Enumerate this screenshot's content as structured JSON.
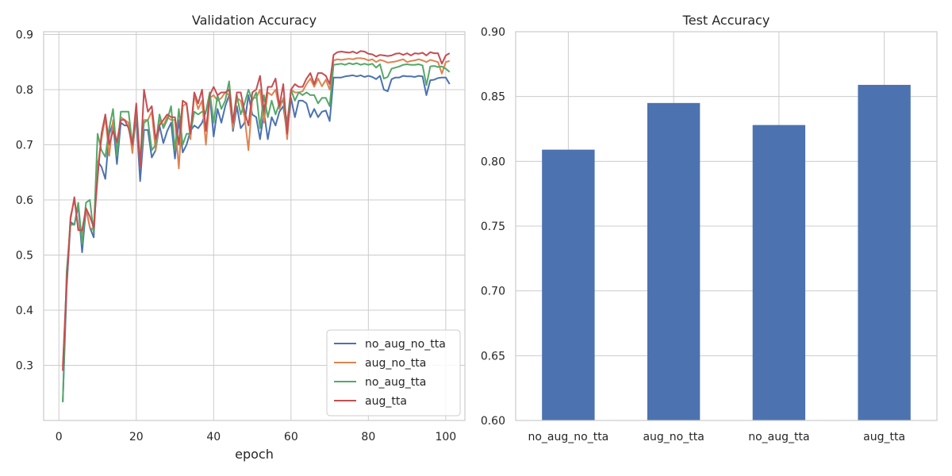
{
  "chart_data": [
    {
      "type": "line",
      "title": "Validation Accuracy",
      "xlabel": "epoch",
      "ylabel": "",
      "xlim": [
        -3.95,
        104.95
      ],
      "ylim": [
        0.2,
        0.905
      ],
      "xticks": [
        0,
        20,
        40,
        60,
        80,
        100
      ],
      "yticks": [
        0.3,
        0.4,
        0.5,
        0.6,
        0.7,
        0.8,
        0.9
      ],
      "ytick_labels": [
        "0.3",
        "0.4",
        "0.5",
        "0.6",
        "0.7",
        "0.8",
        "0.9"
      ],
      "grid": true,
      "legend": "lower-right",
      "series": [
        {
          "name": "no_aug_no_tta",
          "color": "#4c72b0",
          "values": [
            0.234,
            0.44,
            0.56,
            0.555,
            0.59,
            0.505,
            0.585,
            0.55,
            0.532,
            0.67,
            0.66,
            0.638,
            0.72,
            0.74,
            0.665,
            0.74,
            0.735,
            0.735,
            0.69,
            0.75,
            0.634,
            0.727,
            0.727,
            0.677,
            0.69,
            0.735,
            0.703,
            0.725,
            0.74,
            0.675,
            0.745,
            0.686,
            0.7,
            0.725,
            0.735,
            0.73,
            0.74,
            0.76,
            0.79,
            0.715,
            0.765,
            0.74,
            0.77,
            0.79,
            0.725,
            0.77,
            0.73,
            0.74,
            0.79,
            0.755,
            0.75,
            0.71,
            0.76,
            0.71,
            0.75,
            0.735,
            0.76,
            0.77,
            0.72,
            0.785,
            0.75,
            0.78,
            0.78,
            0.775,
            0.75,
            0.765,
            0.75,
            0.76,
            0.762,
            0.743,
            0.822,
            0.822,
            0.822,
            0.824,
            0.825,
            0.826,
            0.824,
            0.826,
            0.823,
            0.825,
            0.823,
            0.819,
            0.825,
            0.8,
            0.797,
            0.819,
            0.822,
            0.822,
            0.825,
            0.824,
            0.824,
            0.823,
            0.825,
            0.824,
            0.79,
            0.817,
            0.818,
            0.821,
            0.822,
            0.822,
            0.81
          ]
        },
        {
          "name": "aug_no_tta",
          "color": "#dd8452",
          "values": [
            0.298,
            0.45,
            0.57,
            0.6,
            0.55,
            0.54,
            0.585,
            0.55,
            0.545,
            0.66,
            0.71,
            0.75,
            0.68,
            0.745,
            0.7,
            0.75,
            0.745,
            0.74,
            0.685,
            0.765,
            0.66,
            0.745,
            0.745,
            0.76,
            0.69,
            0.745,
            0.735,
            0.75,
            0.745,
            0.745,
            0.657,
            0.77,
            0.775,
            0.71,
            0.79,
            0.765,
            0.78,
            0.7,
            0.785,
            0.79,
            0.78,
            0.785,
            0.795,
            0.79,
            0.73,
            0.785,
            0.78,
            0.75,
            0.69,
            0.785,
            0.785,
            0.8,
            0.74,
            0.795,
            0.79,
            0.8,
            0.765,
            0.785,
            0.71,
            0.8,
            0.795,
            0.795,
            0.797,
            0.81,
            0.82,
            0.805,
            0.82,
            0.806,
            0.818,
            0.8,
            0.853,
            0.855,
            0.854,
            0.855,
            0.856,
            0.855,
            0.857,
            0.857,
            0.856,
            0.853,
            0.855,
            0.85,
            0.854,
            0.852,
            0.849,
            0.85,
            0.851,
            0.853,
            0.855,
            0.85,
            0.852,
            0.853,
            0.855,
            0.853,
            0.85,
            0.854,
            0.852,
            0.85,
            0.829,
            0.85,
            0.852
          ]
        },
        {
          "name": "no_aug_tta",
          "color": "#55a868",
          "values": [
            0.233,
            0.47,
            0.555,
            0.555,
            0.595,
            0.52,
            0.595,
            0.6,
            0.54,
            0.72,
            0.69,
            0.678,
            0.73,
            0.765,
            0.68,
            0.76,
            0.76,
            0.76,
            0.7,
            0.765,
            0.67,
            0.74,
            0.745,
            0.69,
            0.7,
            0.755,
            0.73,
            0.745,
            0.77,
            0.69,
            0.765,
            0.7,
            0.72,
            0.72,
            0.76,
            0.755,
            0.76,
            0.76,
            0.795,
            0.74,
            0.79,
            0.765,
            0.78,
            0.815,
            0.74,
            0.79,
            0.755,
            0.775,
            0.8,
            0.78,
            0.795,
            0.73,
            0.79,
            0.75,
            0.78,
            0.755,
            0.775,
            0.78,
            0.74,
            0.8,
            0.78,
            0.795,
            0.79,
            0.795,
            0.79,
            0.79,
            0.775,
            0.785,
            0.785,
            0.77,
            0.845,
            0.846,
            0.847,
            0.845,
            0.848,
            0.846,
            0.848,
            0.845,
            0.847,
            0.845,
            0.847,
            0.84,
            0.846,
            0.82,
            0.823,
            0.838,
            0.84,
            0.842,
            0.845,
            0.846,
            0.845,
            0.845,
            0.846,
            0.844,
            0.808,
            0.842,
            0.843,
            0.841,
            0.842,
            0.838,
            0.832
          ]
        },
        {
          "name": "aug_tta",
          "color": "#c44e52",
          "values": [
            0.29,
            0.45,
            0.565,
            0.605,
            0.545,
            0.545,
            0.585,
            0.57,
            0.55,
            0.64,
            0.72,
            0.755,
            0.7,
            0.725,
            0.705,
            0.745,
            0.745,
            0.73,
            0.7,
            0.775,
            0.66,
            0.8,
            0.76,
            0.77,
            0.71,
            0.735,
            0.745,
            0.755,
            0.75,
            0.75,
            0.7,
            0.78,
            0.775,
            0.72,
            0.795,
            0.775,
            0.8,
            0.725,
            0.79,
            0.805,
            0.79,
            0.795,
            0.795,
            0.8,
            0.74,
            0.795,
            0.795,
            0.76,
            0.735,
            0.795,
            0.8,
            0.825,
            0.76,
            0.805,
            0.805,
            0.82,
            0.77,
            0.81,
            0.72,
            0.8,
            0.81,
            0.805,
            0.805,
            0.82,
            0.83,
            0.81,
            0.83,
            0.83,
            0.825,
            0.81,
            0.863,
            0.868,
            0.869,
            0.868,
            0.867,
            0.869,
            0.866,
            0.87,
            0.869,
            0.865,
            0.864,
            0.86,
            0.863,
            0.862,
            0.861,
            0.862,
            0.865,
            0.866,
            0.863,
            0.866,
            0.862,
            0.866,
            0.865,
            0.867,
            0.862,
            0.868,
            0.866,
            0.866,
            0.847,
            0.862,
            0.866
          ]
        }
      ]
    },
    {
      "type": "bar",
      "title": "Test Accuracy",
      "xlabel": "",
      "ylabel": "",
      "categories": [
        "no_aug_no_tta",
        "aug_no_tta",
        "no_aug_tta",
        "aug_tta"
      ],
      "values": [
        0.809,
        0.845,
        0.828,
        0.859
      ],
      "color": "#4c72b0",
      "ylim": [
        0.6,
        0.9
      ],
      "yticks": [
        0.6,
        0.65,
        0.7,
        0.75,
        0.8,
        0.85,
        0.9
      ],
      "ytick_labels": [
        "0.60",
        "0.65",
        "0.70",
        "0.75",
        "0.80",
        "0.85",
        "0.90"
      ],
      "grid": true
    }
  ]
}
